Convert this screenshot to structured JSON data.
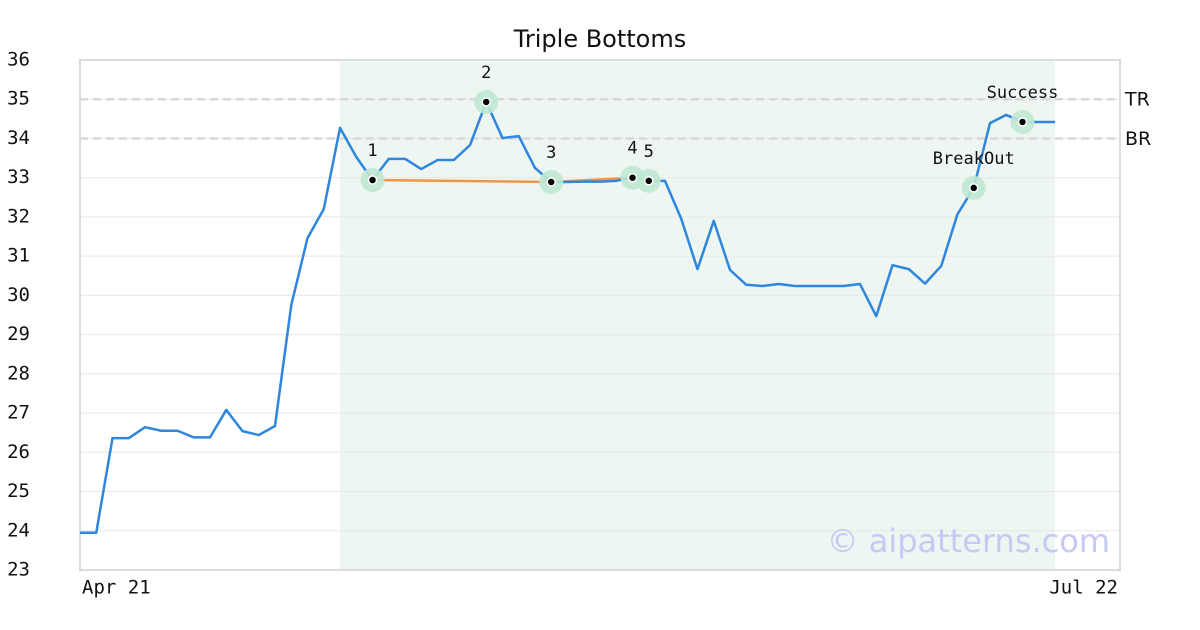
{
  "chart_data": {
    "type": "line",
    "title": "Triple Bottoms",
    "categories": [
      "Apr 21",
      null,
      null,
      null,
      null,
      null,
      null,
      null,
      null,
      null,
      null,
      null,
      null,
      null,
      null,
      null,
      null,
      null,
      null,
      null,
      null,
      null,
      null,
      null,
      null,
      null,
      null,
      null,
      null,
      null,
      null,
      null,
      null,
      null,
      null,
      null,
      null,
      null,
      null,
      null,
      null,
      null,
      null,
      null,
      null,
      null,
      null,
      null,
      null,
      null,
      null,
      null,
      null,
      null,
      null,
      null,
      null,
      null,
      null,
      null,
      null,
      null,
      null,
      null,
      "Jul 22"
    ],
    "values": [
      23.95,
      23.95,
      26.36,
      26.36,
      26.64,
      26.55,
      26.55,
      26.38,
      26.38,
      27.08,
      26.54,
      26.44,
      26.67,
      29.75,
      31.46,
      32.2,
      34.27,
      33.53,
      32.94,
      33.48,
      33.48,
      33.22,
      33.45,
      33.45,
      33.83,
      34.93,
      34.01,
      34.06,
      33.25,
      32.89,
      32.89,
      32.9,
      32.9,
      32.92,
      33.0,
      32.92,
      32.92,
      31.95,
      30.67,
      31.9,
      30.65,
      30.27,
      30.24,
      30.29,
      30.24,
      30.24,
      30.24,
      30.24,
      30.29,
      29.47,
      30.77,
      30.67,
      30.3,
      30.75,
      32.07,
      32.74,
      34.39,
      34.6,
      34.42,
      34.42,
      34.42,
      null,
      null,
      null,
      null
    ],
    "color": "#2e86de",
    "ylim": [
      23,
      36
    ],
    "yticks": [
      23,
      24,
      25,
      26,
      27,
      28,
      29,
      30,
      31,
      32,
      33,
      34,
      35,
      36
    ],
    "grid": true,
    "highlight": {
      "start": 16,
      "end": 60,
      "color": "#eef6f2"
    },
    "reference_lines": [
      {
        "label": "TR",
        "value": 35
      },
      {
        "label": "BR",
        "value": 34
      }
    ],
    "markers": [
      {
        "label": "1",
        "index": 18,
        "support": true
      },
      {
        "label": "2",
        "index": 25,
        "support": false
      },
      {
        "label": "3",
        "index": 29,
        "support": true
      },
      {
        "label": "4",
        "index": 34,
        "support": true
      },
      {
        "label": "5",
        "index": 35,
        "support": false
      },
      {
        "label": "BreakOut",
        "index": 55,
        "support": false
      },
      {
        "label": "Success",
        "index": 58,
        "support": false
      }
    ],
    "support_color": "#f0964a",
    "watermark": "© aipatterns.com"
  }
}
